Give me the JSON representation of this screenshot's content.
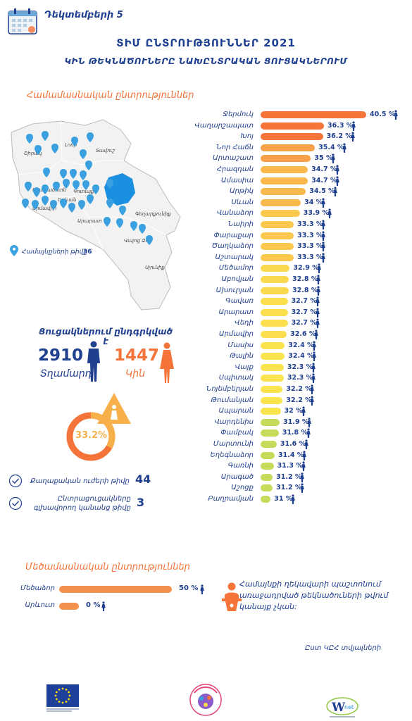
{
  "header": {
    "date": "Դեկտեմբերի 5",
    "title": "ՏԻՄ ԸՆՏՐՈՒԹՅՈՒՆՆԵՐ 2021",
    "subtitle": "ԿԻՆ ԹԵԿՆԱԾՈՒՆԵՐԸ ՆԱԽԸՆՏՐԱԿԱՆ ՑՈՒՑԱԿՆԵՐՈՒՄ"
  },
  "section1": {
    "heading": "Համամասնական ընտրություններ",
    "map": {
      "regions": [
        "Շիրակ",
        "Լոռի",
        "Տավուշ",
        "Արագածոտն",
        "Կոտայք",
        "Երևան",
        "Արմավիր",
        "Արարատ",
        "Գեղարքունիք",
        "Վայոց Ձոր",
        "Սյունիք"
      ],
      "legend_label": "Համայնքների թիվը",
      "legend_value": "36"
    },
    "bars": [
      {
        "name": "Ջերմուկ",
        "value": "40.5 %",
        "pct": 40.5,
        "color": "#f5743a"
      },
      {
        "name": "Վաղարշապատ",
        "value": "36.3 %",
        "pct": 36.3,
        "color": "#f5743a"
      },
      {
        "name": "Խոյ",
        "value": "36.2 %",
        "pct": 36.2,
        "color": "#f5743a"
      },
      {
        "name": "Նոր Հաճն",
        "value": "35.4 %",
        "pct": 35.4,
        "color": "#f7a24a"
      },
      {
        "name": "Արտաշատ",
        "value": "35 %",
        "pct": 35,
        "color": "#f7a24a"
      },
      {
        "name": "Հրազդան",
        "value": "34.7 %",
        "pct": 34.7,
        "color": "#f9b84c"
      },
      {
        "name": "Ամասիա",
        "value": "34.7 %",
        "pct": 34.7,
        "color": "#f9b84c"
      },
      {
        "name": "Արթիկ",
        "value": "34.5 %",
        "pct": 34.5,
        "color": "#f9b84c"
      },
      {
        "name": "Սևան",
        "value": "34 %",
        "pct": 34,
        "color": "#f9b84c"
      },
      {
        "name": "Վանաձոր",
        "value": "33.9 %",
        "pct": 33.9,
        "color": "#fbc84e"
      },
      {
        "name": "Նաիրի",
        "value": "33.3 %",
        "pct": 33.3,
        "color": "#fbc84e"
      },
      {
        "name": "Փարաքար",
        "value": "33.3 %",
        "pct": 33.3,
        "color": "#fbc84e"
      },
      {
        "name": "Ծաղկաձոր",
        "value": "33.3 %",
        "pct": 33.3,
        "color": "#fbc84e"
      },
      {
        "name": "Աշտարակ",
        "value": "33.3 %",
        "pct": 33.3,
        "color": "#fbc84e"
      },
      {
        "name": "Մեծամոր",
        "value": "32.9 %",
        "pct": 32.9,
        "color": "#fbd94f"
      },
      {
        "name": "Աբովյան",
        "value": "32.8 %",
        "pct": 32.8,
        "color": "#fbd94f"
      },
      {
        "name": "Ախուրյան",
        "value": "32.8 %",
        "pct": 32.8,
        "color": "#fbd94f"
      },
      {
        "name": "Գավառ",
        "value": "32.7 %",
        "pct": 32.7,
        "color": "#fbdf4f"
      },
      {
        "name": "Արարատ",
        "value": "32.7 %",
        "pct": 32.7,
        "color": "#fbdf4f"
      },
      {
        "name": "Վեդի",
        "value": "32.7 %",
        "pct": 32.7,
        "color": "#fbdf4f"
      },
      {
        "name": "Արմավիր",
        "value": "32.6 %",
        "pct": 32.6,
        "color": "#fbdf4f"
      },
      {
        "name": "Մասիս",
        "value": "32.4 %",
        "pct": 32.4,
        "color": "#f9e44f"
      },
      {
        "name": "Թալին",
        "value": "32.4 %",
        "pct": 32.4,
        "color": "#f9e44f"
      },
      {
        "name": "Վայք",
        "value": "32.3 %",
        "pct": 32.3,
        "color": "#f9e44f"
      },
      {
        "name": "Սպիտակ",
        "value": "32.3 %",
        "pct": 32.3,
        "color": "#f9e44f"
      },
      {
        "name": "Նոյեմբերյան",
        "value": "32.2 %",
        "pct": 32.2,
        "color": "#f9e44f"
      },
      {
        "name": "Թումանյան",
        "value": "32.2 %",
        "pct": 32.2,
        "color": "#f9e44f"
      },
      {
        "name": "Ապարան",
        "value": "32 %",
        "pct": 32,
        "color": "#f9e44f"
      },
      {
        "name": "Վարդենիս",
        "value": "31.9 %",
        "pct": 31.9,
        "color": "#c5dc5a"
      },
      {
        "name": "Փամբակ",
        "value": "31.8 %",
        "pct": 31.8,
        "color": "#c5dc5a"
      },
      {
        "name": "Մարտունի",
        "value": "31.6 %",
        "pct": 31.6,
        "color": "#c5dc5a"
      },
      {
        "name": "Եղեգնաձոր",
        "value": "31.4 %",
        "pct": 31.4,
        "color": "#c5dc5a"
      },
      {
        "name": "Գառնի",
        "value": "31.3 %",
        "pct": 31.3,
        "color": "#c5dc5a"
      },
      {
        "name": "Արագած",
        "value": "31.2 %",
        "pct": 31.2,
        "color": "#c5dc5a"
      },
      {
        "name": "Աշոցք",
        "value": "31.2 %",
        "pct": 31.2,
        "color": "#c5dc5a"
      },
      {
        "name": "Բաղրամյան",
        "value": "31 %",
        "pct": 31,
        "color": "#c5dc5a"
      }
    ]
  },
  "lists": {
    "heading": "Ցուցակներում ընդգրկված է",
    "total_num": "2910",
    "total_label": "Տղամարդ",
    "women_num": "1447",
    "women_label": "Կին",
    "women_share": "33.2%",
    "women_share_value": 33.2
  },
  "stats": [
    {
      "label": "Քաղաքական ուժերի թիվը",
      "value": "44"
    },
    {
      "label": "Ընտրացուցակները գլխավորող կանանց թիվը",
      "value": "3"
    }
  ],
  "section2": {
    "heading": "Մեծամասնական ընտրություններ",
    "rows": [
      {
        "name": "Մեծաձոր",
        "value": "50 %",
        "pct": 50
      },
      {
        "name": "Արևուտ",
        "value": "0 %",
        "pct": 0
      }
    ],
    "note": "Համայնքի ղեկավարի պաշտոնում առաջադրված թեկնածուների թվում կանայք չկան:"
  },
  "source": "Ըստ ԿԸՀ տվյալների",
  "colors": {
    "navy": "#1f3f8f",
    "orange": "#f5743a",
    "lake": "#1b8fe0"
  }
}
